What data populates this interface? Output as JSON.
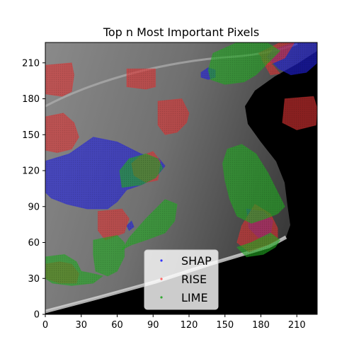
{
  "chart_data": {
    "type": "heatmap",
    "title": "Top n Most Important Pixels",
    "xlabel": "",
    "ylabel": "",
    "xlim": [
      0,
      227
    ],
    "ylim": [
      0,
      227
    ],
    "xticks": [
      0,
      30,
      60,
      90,
      120,
      150,
      180,
      210
    ],
    "yticks": [
      0,
      30,
      60,
      90,
      120,
      150,
      180,
      210
    ],
    "background": "grayscale mammogram image",
    "legend": {
      "placement": "lower-center",
      "entries": [
        {
          "name": "SHAP",
          "color": "#3333ff"
        },
        {
          "name": "RISE",
          "color": "#ff6666"
        },
        {
          "name": "LIME",
          "color": "#33aa33"
        }
      ]
    },
    "series": [
      {
        "name": "SHAP",
        "color": "#2222dd",
        "regions": [
          [
            [
              0,
              128
            ],
            [
              20,
              134
            ],
            [
              40,
              148
            ],
            [
              60,
              144
            ],
            [
              80,
              134
            ],
            [
              95,
              130
            ],
            [
              100,
              124
            ],
            [
              92,
              114
            ],
            [
              80,
              108
            ],
            [
              68,
              104
            ],
            [
              60,
              94
            ],
            [
              52,
              88
            ],
            [
              35,
              88
            ],
            [
              18,
              92
            ],
            [
              5,
              97
            ],
            [
              0,
              102
            ]
          ],
          [
            [
              130,
              202
            ],
            [
              136,
              206
            ],
            [
              142,
              204
            ],
            [
              142,
              198
            ],
            [
              136,
              196
            ],
            [
              130,
              198
            ]
          ],
          [
            [
              190,
              221
            ],
            [
              208,
              227
            ],
            [
              227,
              227
            ],
            [
              227,
              210
            ],
            [
              218,
              202
            ],
            [
              205,
              200
            ],
            [
              195,
              205
            ],
            [
              185,
              215
            ]
          ],
          [
            [
              168,
              88
            ],
            [
              182,
              86
            ],
            [
              190,
              78
            ],
            [
              188,
              66
            ],
            [
              178,
              64
            ],
            [
              170,
              72
            ]
          ],
          [
            [
              68,
              74
            ],
            [
              72,
              78
            ],
            [
              74,
              73
            ],
            [
              70,
              70
            ]
          ]
        ]
      },
      {
        "name": "RISE",
        "color": "#dd3333",
        "regions": [
          [
            [
              0,
              208
            ],
            [
              22,
              210
            ],
            [
              24,
              200
            ],
            [
              22,
              186
            ],
            [
              14,
              182
            ],
            [
              0,
              184
            ]
          ],
          [
            [
              68,
              205
            ],
            [
              92,
              205
            ],
            [
              92,
              190
            ],
            [
              84,
              188
            ],
            [
              68,
              190
            ]
          ],
          [
            [
              94,
              178
            ],
            [
              114,
              180
            ],
            [
              120,
              168
            ],
            [
              118,
              160
            ],
            [
              110,
              152
            ],
            [
              100,
              150
            ],
            [
              94,
              158
            ]
          ],
          [
            [
              0,
              165
            ],
            [
              15,
              168
            ],
            [
              24,
              160
            ],
            [
              28,
              148
            ],
            [
              22,
              138
            ],
            [
              10,
              135
            ],
            [
              0,
              137
            ]
          ],
          [
            [
              79,
              132
            ],
            [
              90,
              136
            ],
            [
              96,
              128
            ],
            [
              94,
              112
            ],
            [
              84,
              110
            ],
            [
              74,
              116
            ],
            [
              72,
              126
            ]
          ],
          [
            [
              44,
              86
            ],
            [
              64,
              88
            ],
            [
              70,
              80
            ],
            [
              66,
              68
            ],
            [
              50,
              62
            ],
            [
              44,
              70
            ]
          ],
          [
            [
              200,
              180
            ],
            [
              224,
              182
            ],
            [
              227,
              172
            ],
            [
              226,
              158
            ],
            [
              210,
              154
            ],
            [
              198,
              160
            ]
          ],
          [
            [
              175,
              92
            ],
            [
              188,
              84
            ],
            [
              194,
              72
            ],
            [
              194,
              62
            ],
            [
              186,
              58
            ],
            [
              170,
              52
            ],
            [
              160,
              60
            ],
            [
              164,
              74
            ]
          ],
          [
            [
              0,
              42
            ],
            [
              12,
              44
            ],
            [
              22,
              42
            ],
            [
              28,
              34
            ],
            [
              26,
              26
            ],
            [
              12,
              26
            ],
            [
              0,
              30
            ]
          ],
          [
            [
              178,
              218
            ],
            [
              196,
              227
            ],
            [
              208,
              227
            ],
            [
              200,
              214
            ],
            [
              186,
              208
            ]
          ],
          [
            [
              180,
              214
            ],
            [
              190,
              208
            ],
            [
              196,
              201
            ],
            [
              188,
              200
            ]
          ]
        ]
      },
      {
        "name": "LIME",
        "color": "#22aa22",
        "regions": [
          [
            [
              140,
              218
            ],
            [
              160,
              227
            ],
            [
              185,
              227
            ],
            [
              196,
              220
            ],
            [
              186,
              210
            ],
            [
              176,
              200
            ],
            [
              166,
              194
            ],
            [
              150,
              192
            ],
            [
              138,
              196
            ],
            [
              136,
              204
            ]
          ],
          [
            [
              152,
              138
            ],
            [
              164,
              142
            ],
            [
              176,
              134
            ],
            [
              186,
              118
            ],
            [
              194,
              102
            ],
            [
              200,
              90
            ],
            [
              194,
              84
            ],
            [
              184,
              80
            ],
            [
              172,
              76
            ],
            [
              160,
              82
            ],
            [
              154,
              96
            ],
            [
              150,
              112
            ],
            [
              148,
              126
            ]
          ],
          [
            [
              64,
              106
            ],
            [
              80,
              108
            ],
            [
              92,
              114
            ],
            [
              98,
              122
            ],
            [
              94,
              130
            ],
            [
              84,
              134
            ],
            [
              70,
              130
            ],
            [
              62,
              120
            ]
          ],
          [
            [
              64,
              54
            ],
            [
              70,
              64
            ],
            [
              84,
              80
            ],
            [
              100,
              96
            ],
            [
              110,
              92
            ],
            [
              108,
              78
            ],
            [
              100,
              68
            ],
            [
              84,
              62
            ],
            [
              72,
              58
            ]
          ],
          [
            [
              40,
              62
            ],
            [
              60,
              66
            ],
            [
              66,
              60
            ],
            [
              66,
              48
            ],
            [
              60,
              36
            ],
            [
              52,
              32
            ],
            [
              42,
              36
            ],
            [
              40,
              50
            ]
          ],
          [
            [
              0,
              48
            ],
            [
              16,
              50
            ],
            [
              26,
              44
            ],
            [
              30,
              36
            ],
            [
              40,
              34
            ],
            [
              48,
              32
            ],
            [
              40,
              26
            ],
            [
              22,
              24
            ],
            [
              6,
              26
            ],
            [
              0,
              30
            ]
          ],
          [
            [
              160,
              56
            ],
            [
              172,
              60
            ],
            [
              180,
              64
            ],
            [
              188,
              68
            ],
            [
              196,
              62
            ],
            [
              192,
              56
            ],
            [
              182,
              50
            ],
            [
              168,
              48
            ]
          ]
        ]
      }
    ]
  }
}
